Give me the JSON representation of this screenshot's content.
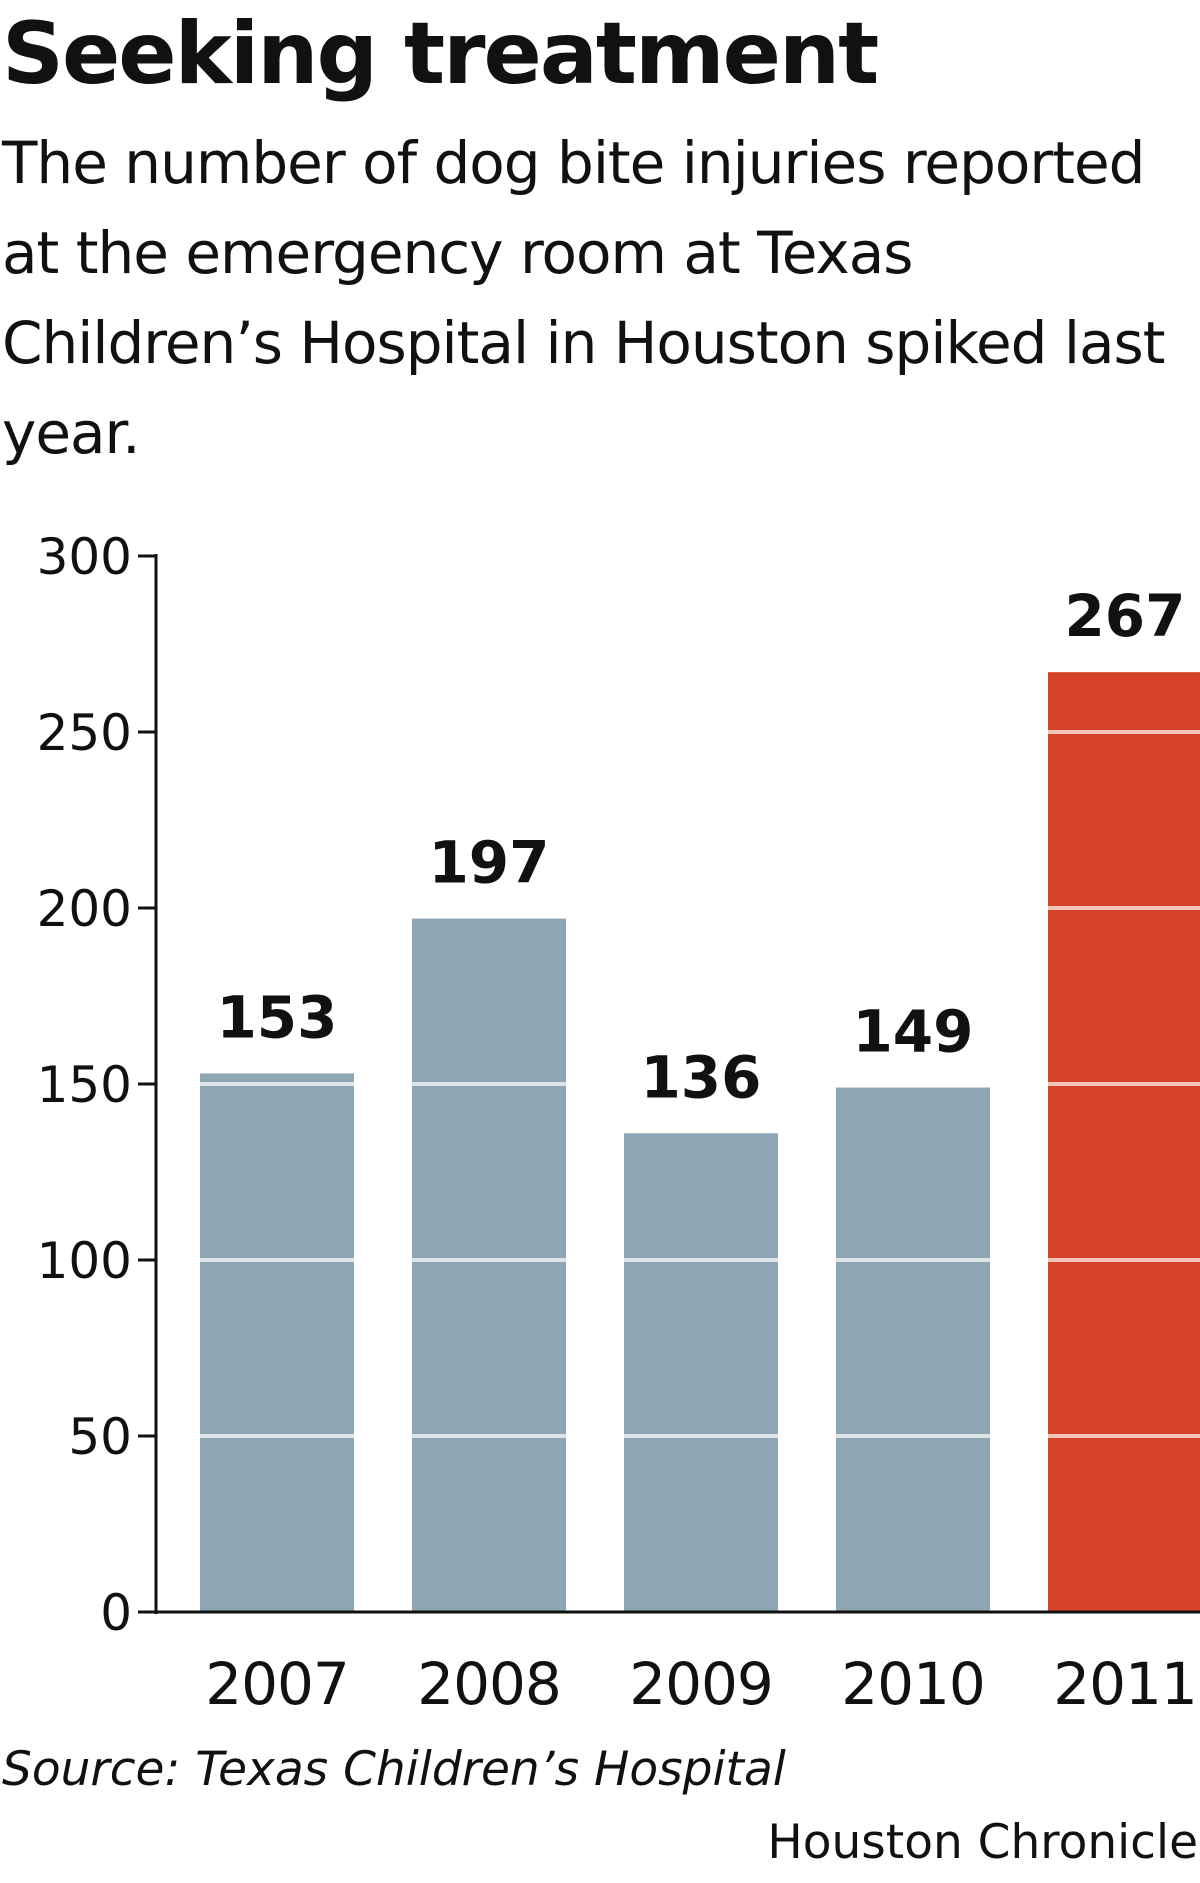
{
  "header": {
    "title": "Seeking treatment",
    "subtitle": "The number of dog bite injuries reported at the emergency room at Texas Children’s Hospital in Houston spiked last year."
  },
  "footer": {
    "source": "Source: Texas Children’s Hospital",
    "credit": "Houston Chronicle"
  },
  "chart_data": {
    "type": "bar",
    "title": "Seeking treatment",
    "subtitle": "The number of dog bite injuries reported at the emergency room at Texas Children’s Hospital in Houston spiked last year.",
    "categories": [
      "2007",
      "2008",
      "2009",
      "2010",
      "2011"
    ],
    "values": [
      153,
      197,
      136,
      149,
      267
    ],
    "data_labels": [
      "153",
      "197",
      "136",
      "149",
      "267"
    ],
    "highlight_index": 4,
    "ylim": [
      0,
      300
    ],
    "yticks": [
      0,
      50,
      100,
      150,
      200,
      250,
      300
    ],
    "ytick_labels": [
      "0",
      "50",
      "100",
      "150",
      "200",
      "250",
      "300"
    ],
    "xlabel": "",
    "ylabel": "",
    "grid": true,
    "colors": {
      "bar": "#8ea6b3",
      "highlight": "#d5422a",
      "gridline": "#ffffff",
      "axis": "#111111",
      "text": "#111111"
    }
  }
}
